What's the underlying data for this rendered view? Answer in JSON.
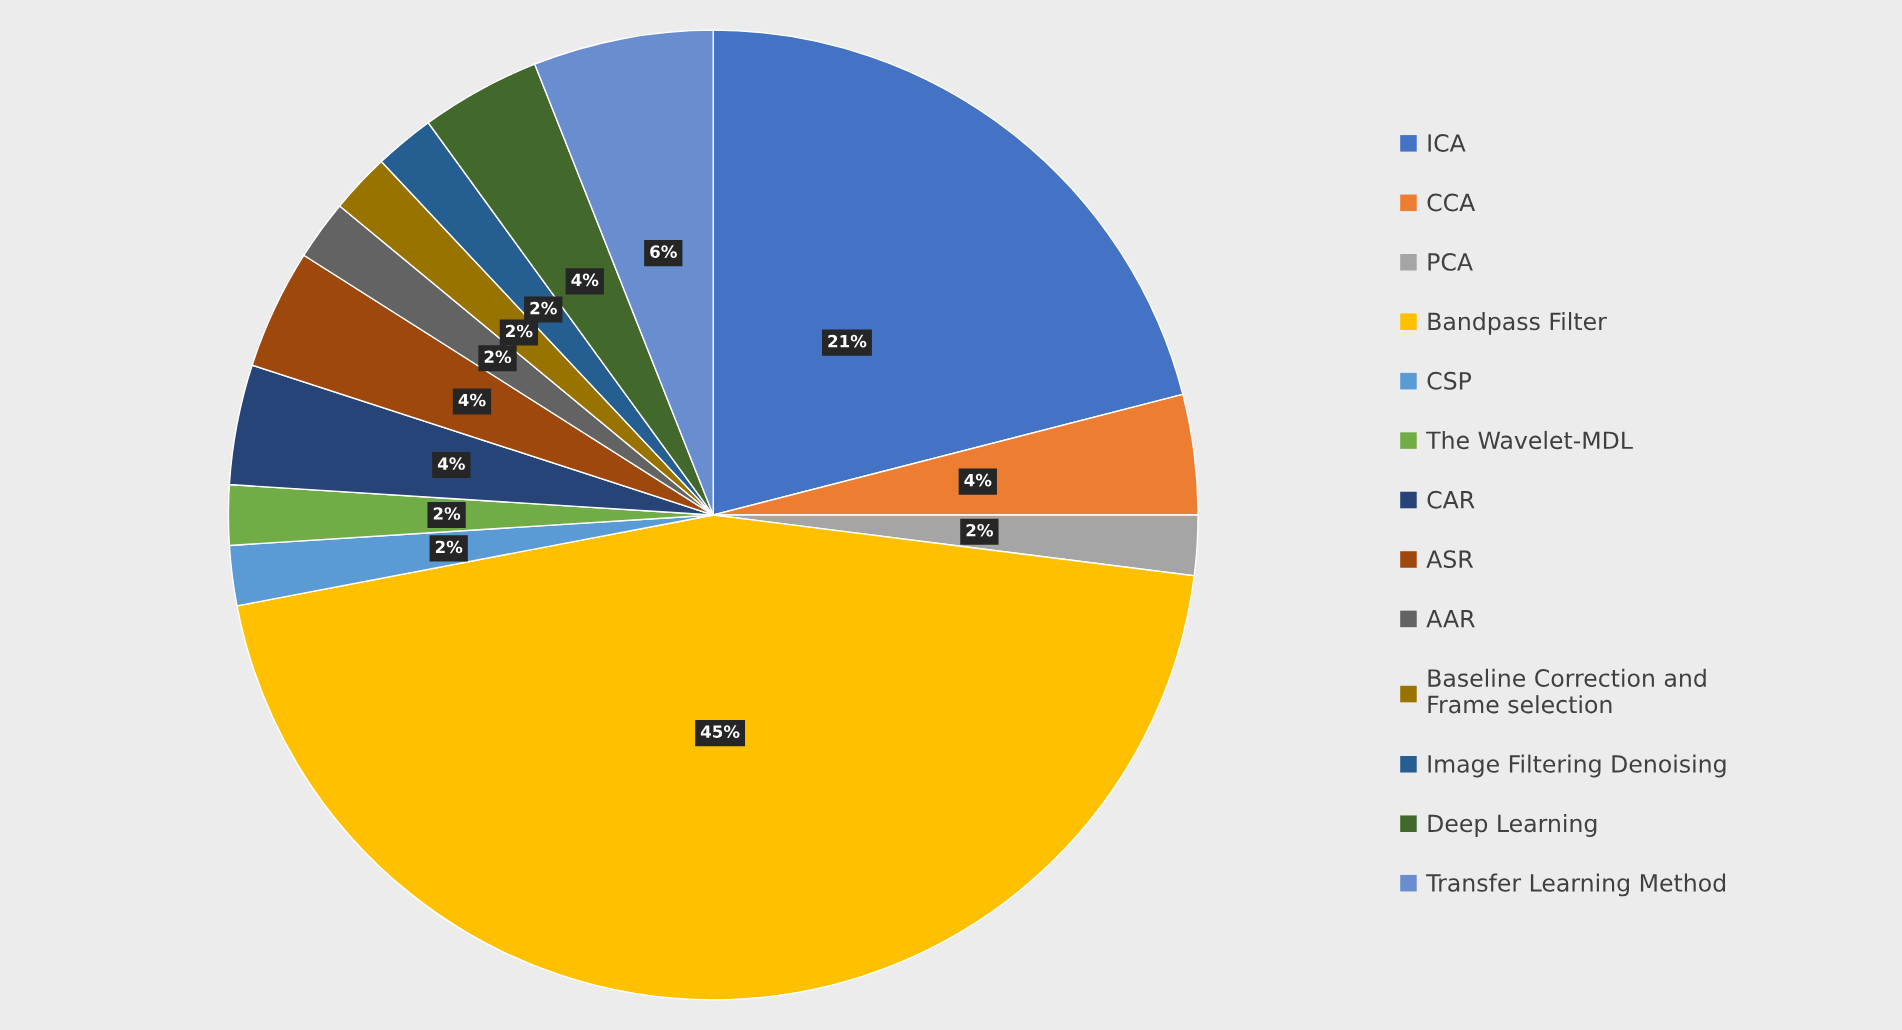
{
  "chart_data": {
    "type": "pie",
    "categories": [
      "ICA",
      "CCA",
      "PCA",
      "Bandpass Filter",
      "CSP",
      "The Wavelet-MDL",
      "CAR",
      "ASR",
      "AAR",
      "Baseline Correction and\nFrame selection",
      "Image Filtering Denoising",
      "Deep Learning",
      "Transfer Learning Method"
    ],
    "values": [
      21,
      4,
      2,
      45,
      2,
      2,
      4,
      4,
      2,
      2,
      2,
      4,
      6
    ],
    "colors": [
      "#4472c4",
      "#ed7d31",
      "#a5a5a5",
      "#ffc000",
      "#5b9bd5",
      "#70ad47",
      "#264478",
      "#9e480e",
      "#636363",
      "#997300",
      "#255e91",
      "#43682b",
      "#698ed0"
    ],
    "value_labels": [
      "21%",
      "4%",
      "2%",
      "45%",
      "2%",
      "2%",
      "4%",
      "4%",
      "2%",
      "2%",
      "2%",
      "4%",
      "6%"
    ],
    "legend": "right"
  }
}
